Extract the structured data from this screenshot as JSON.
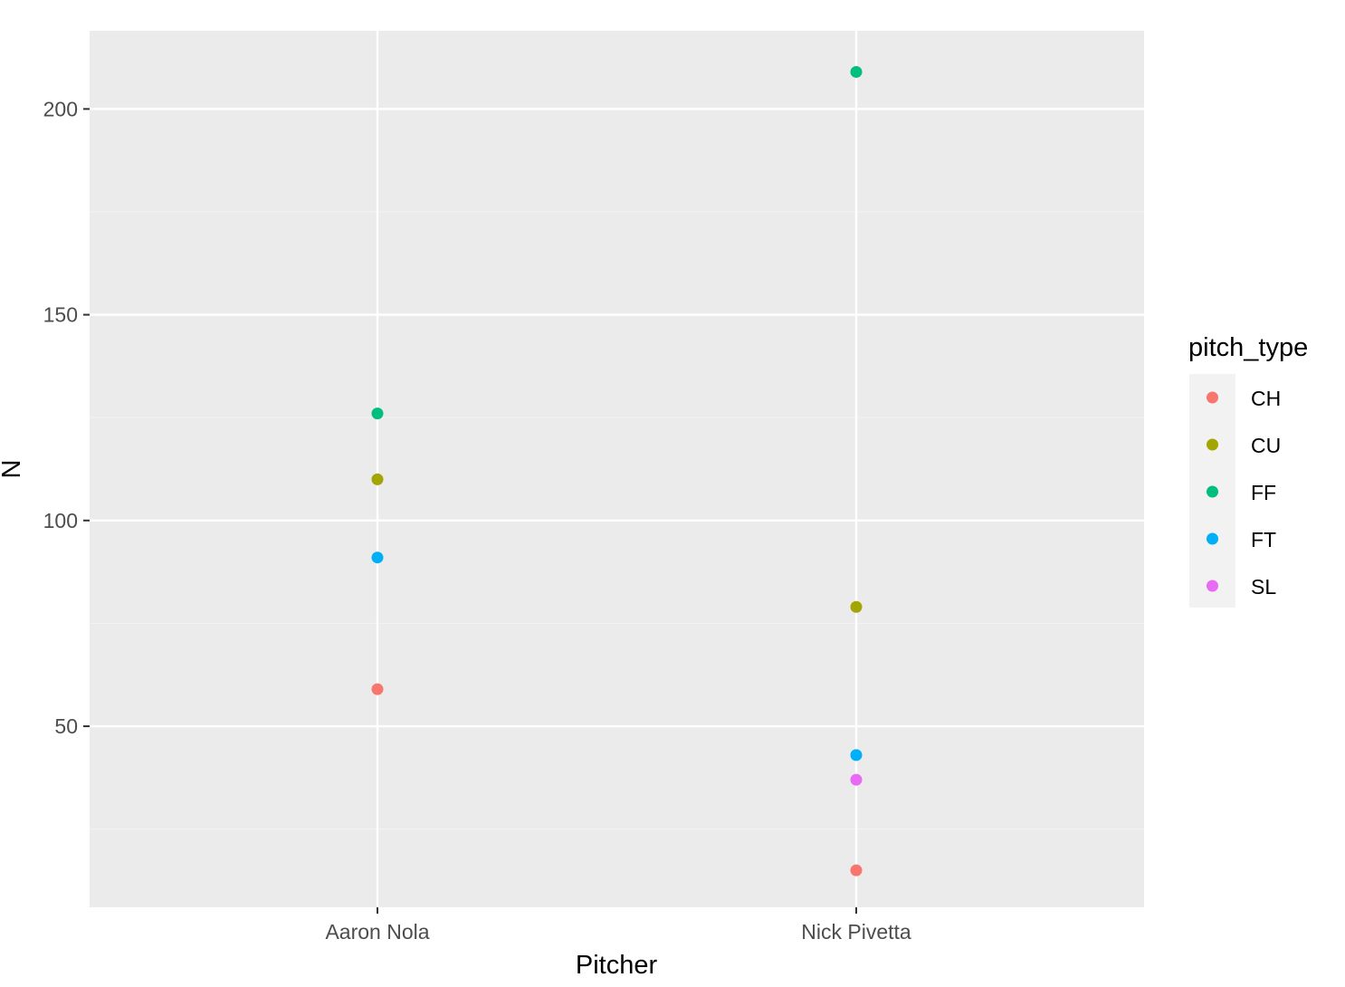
{
  "chart_data": {
    "type": "scatter",
    "xlabel": "Pitcher",
    "ylabel": "N",
    "categories": [
      "Aaron Nola",
      "Nick Pivetta"
    ],
    "ylim": [
      6,
      219
    ],
    "yticks": [
      50,
      100,
      150,
      200
    ],
    "grid": true,
    "legend": {
      "title": "pitch_type",
      "position": "right"
    },
    "series": [
      {
        "name": "CH",
        "color": "#F8766D",
        "values": [
          59,
          15
        ]
      },
      {
        "name": "CU",
        "color": "#A3A500",
        "values": [
          110,
          79
        ]
      },
      {
        "name": "FF",
        "color": "#00BF7D",
        "values": [
          126,
          209
        ]
      },
      {
        "name": "FT",
        "color": "#00B0F6",
        "values": [
          91,
          43
        ]
      },
      {
        "name": "SL",
        "color": "#E76BF3",
        "values": [
          null,
          37
        ]
      }
    ],
    "colors": {
      "panel_background": "#EBEBEB",
      "grid_major": "#FFFFFF",
      "grid_minor": "#F2F2F2"
    }
  }
}
